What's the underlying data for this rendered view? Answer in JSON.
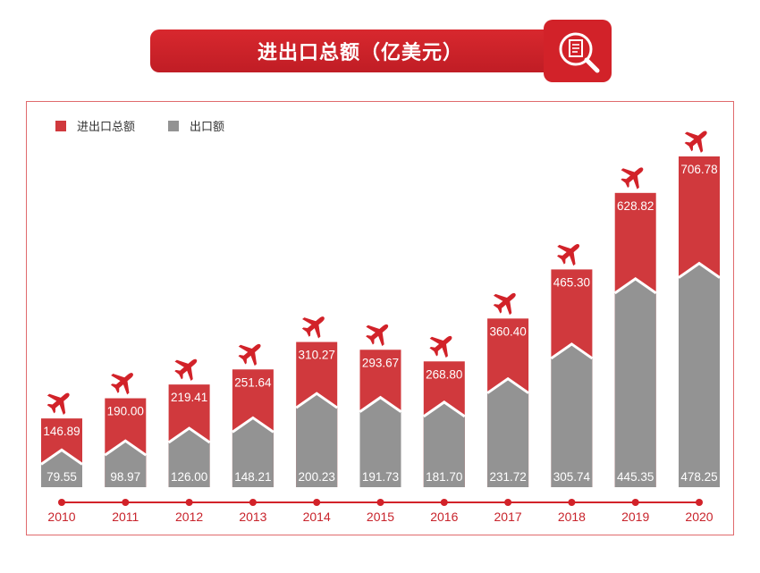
{
  "title": "进出口总额（亿美元）",
  "colors": {
    "total": "#d0393d",
    "export": "#939393",
    "accent": "#d22229",
    "axis_label": "#c8232b"
  },
  "icons": {
    "title_icon": "document-search-icon",
    "bar_marker": "airplane-icon"
  },
  "chart_data": {
    "type": "bar",
    "categories": [
      "2010",
      "2011",
      "2012",
      "2013",
      "2014",
      "2015",
      "2016",
      "2017",
      "2018",
      "2019",
      "2020"
    ],
    "series": [
      {
        "name": "进出口总额",
        "values": [
          146.89,
          190.0,
          219.41,
          251.64,
          310.27,
          293.67,
          268.8,
          360.4,
          465.3,
          628.82,
          706.78
        ],
        "labels": [
          "146.89",
          "190.00",
          "219.41",
          "251.64",
          "310.27",
          "293.67",
          "268.80",
          "360.40",
          "465.30",
          "628.82",
          "706.78"
        ]
      },
      {
        "name": "出口额",
        "values": [
          79.55,
          98.97,
          126.0,
          148.21,
          200.23,
          191.73,
          181.7,
          231.72,
          305.74,
          445.35,
          478.25
        ],
        "labels": [
          "79.55",
          "98.97",
          "126.00",
          "148.21",
          "200.23",
          "191.73",
          "181.70",
          "231.72",
          "305.74",
          "445.35",
          "478.25"
        ]
      }
    ],
    "overlay": true,
    "legend_position": "top-left",
    "ylim": [
      0,
      706.78
    ],
    "grid": false
  }
}
